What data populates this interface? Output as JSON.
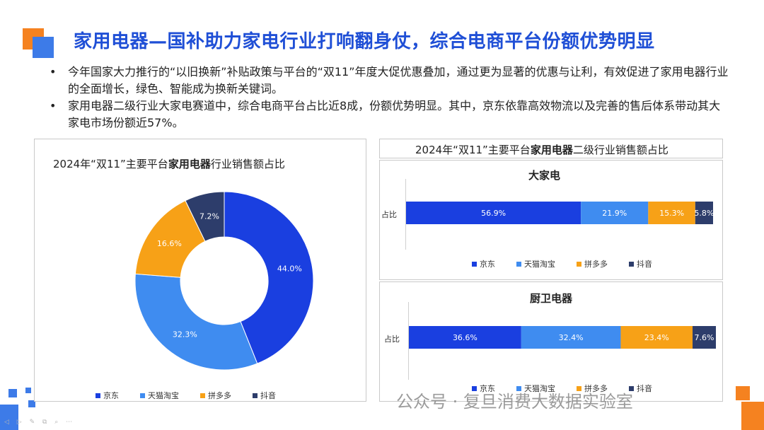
{
  "title": "家用电器—国补助力家电行业打响翻身仗，综合电商平台份额优势明显",
  "bullets": [
    "今年国家大力推行的“以旧换新”补贴政策与平台的“双11”年度大促优惠叠加，通过更为显著的优惠与让利，有效促进了家用电器行业的全面增长，绿色、智能成为换新关键词。",
    "家用电器二级行业大家电赛道中，综合电商平台占比近8成，份额优势明显。其中，京东依靠高效物流以及完善的售后体系带动其大家电市场份额近57%。"
  ],
  "watermark": "公众号 · 复旦消费大数据实验室",
  "nav_icons": "◁ ▷ ✎ ⧉ ⌕ ⋯",
  "colors": {
    "accent": "#1f4fd6",
    "orange": "#f58220",
    "deco_blue": "#3d7be8"
  },
  "charts_header": {
    "pre": "2024年“双11”主要平台",
    "bold": "家用电器",
    "post": "二级行业销售额占比"
  },
  "chart_data": [
    {
      "type": "pie",
      "donut": true,
      "title_pre": "2024年“双11”主要平台",
      "title_bold": "家用电器",
      "title_post": "行业销售额占比",
      "categories": [
        "京东",
        "天猫淘宝",
        "拼多多",
        "抖音"
      ],
      "values": [
        44.0,
        32.3,
        16.6,
        7.2
      ],
      "labels": [
        "44.0%",
        "32.3%",
        "16.6%",
        "7.2%"
      ],
      "colors": [
        "#1a3fe0",
        "#3f8cf0",
        "#f7a117",
        "#2d3d6b"
      ],
      "legend": "bottom"
    },
    {
      "type": "bar",
      "stacked": true,
      "orientation": "horizontal",
      "title": "大家电",
      "category": "占比",
      "series": [
        {
          "name": "京东",
          "value": 56.9,
          "label": "56.9%",
          "color": "#1a3fe0"
        },
        {
          "name": "天猫淘宝",
          "value": 21.9,
          "label": "21.9%",
          "color": "#3f8cf0"
        },
        {
          "name": "拼多多",
          "value": 15.3,
          "label": "15.3%",
          "color": "#f7a117"
        },
        {
          "name": "抖音",
          "value": 5.8,
          "label": "5.8%",
          "color": "#2d3d6b"
        }
      ],
      "legend": "bottom"
    },
    {
      "type": "bar",
      "stacked": true,
      "orientation": "horizontal",
      "title": "厨卫电器",
      "category": "占比",
      "series": [
        {
          "name": "京东",
          "value": 36.6,
          "label": "36.6%",
          "color": "#1a3fe0"
        },
        {
          "name": "天猫淘宝",
          "value": 32.4,
          "label": "32.4%",
          "color": "#3f8cf0"
        },
        {
          "name": "拼多多",
          "value": 23.4,
          "label": "23.4%",
          "color": "#f7a117"
        },
        {
          "name": "抖音",
          "value": 7.6,
          "label": "7.6%",
          "color": "#2d3d6b"
        }
      ],
      "legend": "bottom"
    }
  ]
}
